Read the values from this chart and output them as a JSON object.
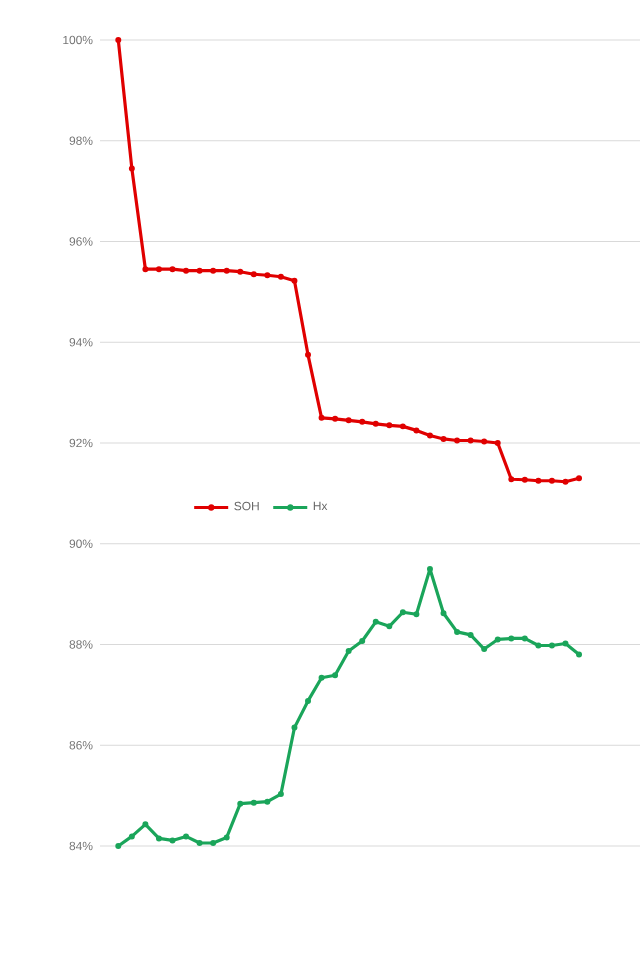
{
  "chart_data": {
    "type": "line",
    "categories": [
      null,
      null,
      null,
      null,
      null,
      null,
      null,
      null,
      null,
      null,
      null,
      null,
      null,
      null,
      null,
      null,
      null,
      null,
      null,
      null,
      null,
      null,
      null,
      null,
      null,
      null,
      null,
      null,
      null,
      null,
      null,
      null,
      null,
      null,
      null
    ],
    "series": [
      {
        "name": "SOH",
        "color": "#e00000",
        "values": [
          100,
          97.45,
          95.45,
          95.45,
          95.45,
          95.42,
          95.42,
          95.42,
          95.42,
          95.4,
          95.35,
          95.33,
          95.3,
          95.22,
          93.75,
          92.5,
          92.48,
          92.45,
          92.42,
          92.38,
          92.35,
          92.33,
          92.25,
          92.15,
          92.08,
          92.05,
          92.05,
          92.03,
          92.0,
          91.28,
          91.27,
          91.25,
          91.25,
          91.23,
          91.3
        ]
      },
      {
        "name": "Hx",
        "color": "#1aa55a",
        "values": [
          84.0,
          84.19,
          84.43,
          84.15,
          84.11,
          84.19,
          84.06,
          84.06,
          84.17,
          84.84,
          84.86,
          84.88,
          85.03,
          86.35,
          86.88,
          87.34,
          87.39,
          87.87,
          88.07,
          88.45,
          88.36,
          88.64,
          88.6,
          89.5,
          88.62,
          88.25,
          88.19,
          87.91,
          88.1,
          88.12,
          88.12,
          87.98,
          87.98,
          88.02,
          87.8
        ]
      }
    ],
    "ylim": [
      84,
      100
    ],
    "yticks": [
      {
        "value": 84,
        "label": "84%"
      },
      {
        "value": 86,
        "label": "86%"
      },
      {
        "value": 88,
        "label": "88%"
      },
      {
        "value": 90,
        "label": "90%"
      },
      {
        "value": 92,
        "label": "92%"
      },
      {
        "value": 94,
        "label": "94%"
      },
      {
        "value": 96,
        "label": "96%"
      },
      {
        "value": 98,
        "label": "98%"
      },
      {
        "value": 100,
        "label": "100%"
      }
    ],
    "grid": "y",
    "legend": "center",
    "marker": "circle",
    "line_style": "solid",
    "tick_labels": "y"
  }
}
